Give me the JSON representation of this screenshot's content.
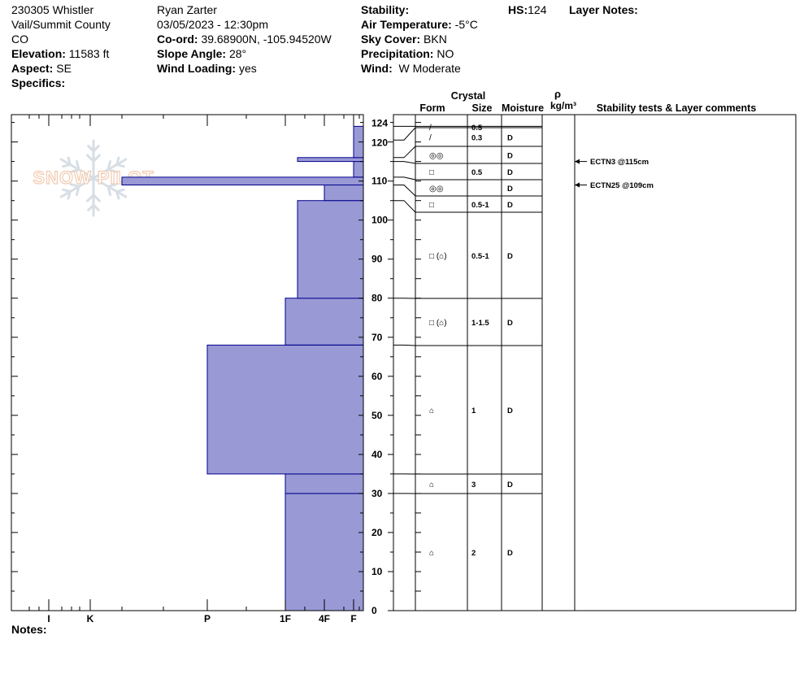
{
  "header": {
    "site": "230305 Whistler",
    "region": "Vail/Summit County",
    "state": "CO",
    "elevation_label": "Elevation:",
    "elevation": "11583 ft",
    "aspect_label": "Aspect:",
    "aspect": "SE",
    "specifics_label": "Specifics:",
    "observer": "Ryan Zarter",
    "datetime": "03/05/2023 - 12:30pm",
    "coord_label": "Co-ord:",
    "coord": "39.68900N, -105.94520W",
    "slope_label": "Slope Angle:",
    "slope": "28°",
    "windload_label": "Wind Loading:",
    "windload": "yes",
    "stability_label": "Stability:",
    "airtemp_label": "Air Temperature:",
    "airtemp": "-5°C",
    "sky_label": "Sky Cover:",
    "sky": "BKN",
    "precip_label": "Precipitation:",
    "precip": "NO",
    "wind_label": "Wind:",
    "wind": "W Moderate",
    "hs_label": "HS:",
    "hs": "124",
    "layer_notes_label": "Layer Notes:",
    "notes_label": "Notes:"
  },
  "watermark": "SNOW PILOT",
  "columns": {
    "crystal": "Crystal",
    "form": "Form",
    "size": "Size",
    "moisture": "Moisture",
    "rho": "ρ",
    "density_unit": "kg/m³",
    "stability": "Stability tests & Layer comments"
  },
  "colors": {
    "hardness_fill": "#9999d6",
    "hardness_edge": "#00008b",
    "watermark": "#e8a070"
  },
  "chart_data": {
    "type": "bar",
    "orientation": "horizontal",
    "y_axis": {
      "label": "",
      "range": [
        0,
        124
      ],
      "ticks": [
        0,
        10,
        20,
        30,
        40,
        50,
        60,
        70,
        80,
        90,
        100,
        110,
        120,
        124
      ]
    },
    "x_axis": {
      "label": "",
      "hardness_scale": [
        "F",
        "4F",
        "1F",
        "P",
        "K",
        "I"
      ],
      "tick_labels": [
        "I",
        "K",
        "P",
        "1F",
        "4F",
        "F"
      ]
    },
    "hardness_layers": [
      {
        "bottom": 0,
        "top": 30,
        "hardness": "1F"
      },
      {
        "bottom": 30,
        "top": 35,
        "hardness": "1F"
      },
      {
        "bottom": 35,
        "top": 68,
        "hardness": "P"
      },
      {
        "bottom": 68,
        "top": 80,
        "hardness": "1F"
      },
      {
        "bottom": 80,
        "top": 105,
        "hardness": "1F-"
      },
      {
        "bottom": 105,
        "top": 109,
        "hardness": "4F"
      },
      {
        "bottom": 109,
        "top": 111,
        "hardness": "K-"
      },
      {
        "bottom": 111,
        "top": 115,
        "hardness": "F"
      },
      {
        "bottom": 115,
        "top": 116,
        "hardness": "4F+"
      },
      {
        "bottom": 116,
        "top": 124,
        "hardness": "F"
      }
    ],
    "layers": [
      {
        "top": 124,
        "bottom": 120.5,
        "form": "/",
        "size": "0.5",
        "moisture": ""
      },
      {
        "top": 120.5,
        "bottom": 116,
        "form": "/",
        "size": "0.3",
        "moisture": "D"
      },
      {
        "top": 116,
        "bottom": 115,
        "form": "◎◎",
        "size": "",
        "moisture": "D"
      },
      {
        "top": 115,
        "bottom": 111,
        "form": "□",
        "size": "0.5",
        "moisture": "D"
      },
      {
        "top": 111,
        "bottom": 109,
        "form": "◎◎",
        "size": "",
        "moisture": "D"
      },
      {
        "top": 109,
        "bottom": 105,
        "form": "□",
        "size": "0.5-1",
        "moisture": "D"
      },
      {
        "top": 105,
        "bottom": 80,
        "form": "□ (⌂)",
        "size": "0.5-1",
        "moisture": "D"
      },
      {
        "top": 80,
        "bottom": 68,
        "form": "□ (⌂)",
        "size": "1-1.5",
        "moisture": "D"
      },
      {
        "top": 68,
        "bottom": 35,
        "form": "⌂",
        "size": "1",
        "moisture": "D"
      },
      {
        "top": 35,
        "bottom": 30,
        "form": "⌂",
        "size": "3",
        "moisture": "D"
      },
      {
        "top": 30,
        "bottom": 0,
        "form": "⌂",
        "size": "2",
        "moisture": "D"
      }
    ],
    "stability_tests": [
      {
        "depth": 115,
        "label": "ECTN3 @115cm"
      },
      {
        "depth": 109,
        "label": "ECTN25 @109cm"
      }
    ]
  }
}
